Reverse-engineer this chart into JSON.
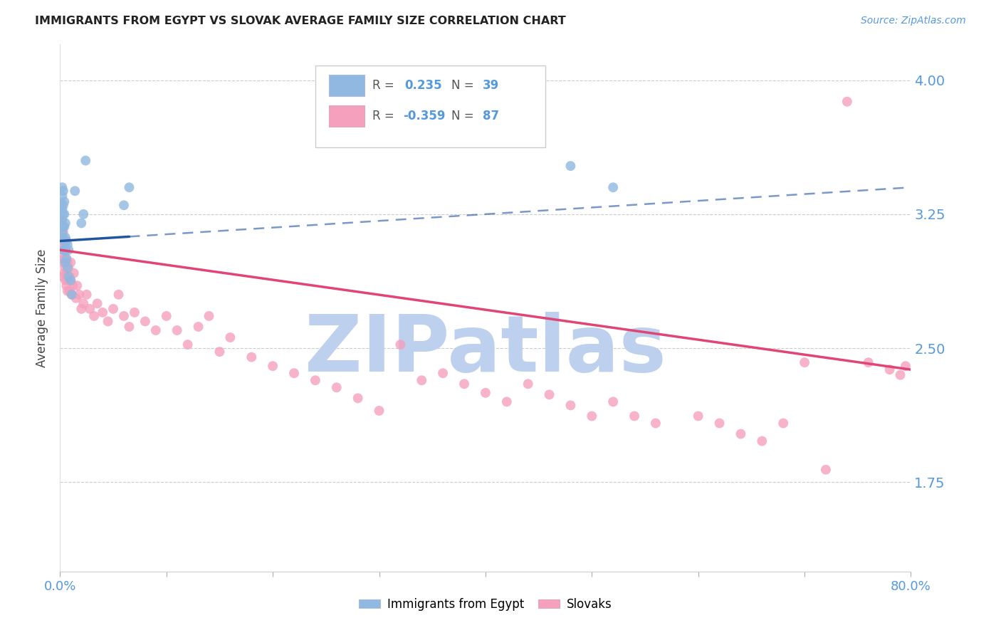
{
  "title": "IMMIGRANTS FROM EGYPT VS SLOVAK AVERAGE FAMILY SIZE CORRELATION CHART",
  "source": "Source: ZipAtlas.com",
  "ylabel": "Average Family Size",
  "yticks": [
    1.75,
    2.5,
    3.25,
    4.0
  ],
  "ymin": 1.25,
  "ymax": 4.2,
  "xmin": 0.0,
  "xmax": 0.8,
  "legend_blue_r_val": "0.235",
  "legend_blue_n_val": "39",
  "legend_pink_r_val": "-0.359",
  "legend_pink_n_val": "87",
  "label_blue": "Immigrants from Egypt",
  "label_pink": "Slovaks",
  "blue_color": "#90B8E0",
  "pink_color": "#F5A0BC",
  "blue_line_color": "#2255A0",
  "pink_line_color": "#E04575",
  "title_color": "#222222",
  "axis_color": "#5599DD",
  "grid_color": "#CCCCCC",
  "watermark_color": "#BDD0EE",
  "blue_scatter_x": [
    0.001,
    0.001,
    0.001,
    0.002,
    0.002,
    0.002,
    0.002,
    0.002,
    0.003,
    0.003,
    0.003,
    0.003,
    0.003,
    0.003,
    0.004,
    0.004,
    0.004,
    0.004,
    0.004,
    0.005,
    0.005,
    0.005,
    0.005,
    0.006,
    0.006,
    0.007,
    0.007,
    0.008,
    0.008,
    0.01,
    0.011,
    0.014,
    0.02,
    0.022,
    0.024,
    0.06,
    0.065,
    0.48,
    0.52
  ],
  "blue_scatter_y": [
    3.3,
    3.22,
    3.18,
    3.4,
    3.35,
    3.28,
    3.22,
    3.15,
    3.38,
    3.3,
    3.25,
    3.18,
    3.12,
    3.05,
    3.32,
    3.25,
    3.18,
    3.1,
    3.05,
    3.2,
    3.12,
    3.05,
    2.98,
    3.1,
    3.0,
    3.08,
    2.95,
    3.05,
    2.9,
    2.88,
    2.8,
    3.38,
    3.2,
    3.25,
    3.55,
    3.3,
    3.4,
    3.52,
    3.4
  ],
  "pink_scatter_x": [
    0.001,
    0.001,
    0.002,
    0.002,
    0.002,
    0.003,
    0.003,
    0.003,
    0.003,
    0.004,
    0.004,
    0.004,
    0.005,
    0.005,
    0.005,
    0.006,
    0.006,
    0.006,
    0.007,
    0.007,
    0.007,
    0.008,
    0.008,
    0.009,
    0.009,
    0.01,
    0.01,
    0.011,
    0.012,
    0.013,
    0.015,
    0.016,
    0.018,
    0.02,
    0.022,
    0.025,
    0.028,
    0.032,
    0.035,
    0.04,
    0.045,
    0.05,
    0.055,
    0.06,
    0.065,
    0.07,
    0.08,
    0.09,
    0.1,
    0.11,
    0.12,
    0.13,
    0.14,
    0.15,
    0.16,
    0.18,
    0.2,
    0.22,
    0.24,
    0.26,
    0.28,
    0.3,
    0.32,
    0.34,
    0.36,
    0.38,
    0.4,
    0.42,
    0.44,
    0.46,
    0.48,
    0.5,
    0.52,
    0.54,
    0.56,
    0.6,
    0.62,
    0.64,
    0.66,
    0.68,
    0.7,
    0.72,
    0.74,
    0.76,
    0.78,
    0.79,
    0.795
  ],
  "pink_scatter_y": [
    3.22,
    3.1,
    3.18,
    3.1,
    3.0,
    3.15,
    3.05,
    2.98,
    2.9,
    3.1,
    3.0,
    2.92,
    3.05,
    2.95,
    2.88,
    3.0,
    2.92,
    2.85,
    2.98,
    2.9,
    2.82,
    2.95,
    2.88,
    2.9,
    2.82,
    2.88,
    2.98,
    2.8,
    2.85,
    2.92,
    2.78,
    2.85,
    2.8,
    2.72,
    2.75,
    2.8,
    2.72,
    2.68,
    2.75,
    2.7,
    2.65,
    2.72,
    2.8,
    2.68,
    2.62,
    2.7,
    2.65,
    2.6,
    2.68,
    2.6,
    2.52,
    2.62,
    2.68,
    2.48,
    2.56,
    2.45,
    2.4,
    2.36,
    2.32,
    2.28,
    2.22,
    2.15,
    2.52,
    2.32,
    2.36,
    2.3,
    2.25,
    2.2,
    2.3,
    2.24,
    2.18,
    2.12,
    2.2,
    2.12,
    2.08,
    2.12,
    2.08,
    2.02,
    1.98,
    2.08,
    2.42,
    1.82,
    3.88,
    2.42,
    2.38,
    2.35,
    2.4
  ],
  "blue_line_x0": 0.0,
  "blue_line_x_solid_end": 0.065,
  "blue_line_x_dash_end": 0.8,
  "blue_line_y_at_0": 3.1,
  "blue_line_y_at_08": 3.4,
  "pink_line_y_at_0": 3.05,
  "pink_line_y_at_08": 2.38
}
